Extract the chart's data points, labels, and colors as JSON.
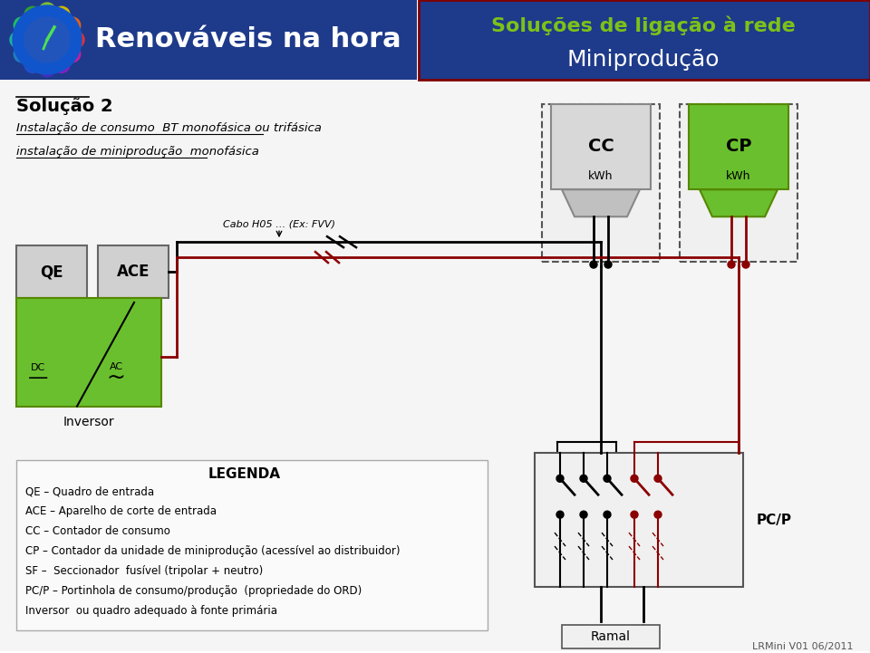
{
  "bg_color": "#ffffff",
  "header_left_color": "#1e3a8a",
  "header_right_color": "#1e3a8a",
  "green_text": "#7dc119",
  "white_text": "#ffffff",
  "title1": "Soluções de ligação à rede",
  "title2": "Miniprodução",
  "brand": "Renováveis na hora",
  "solution_title": "Solução 2",
  "line1": "Instalação de consumo  BT monofásica ou trifásica",
  "line2": "instalação de miniprodução  monofásica",
  "cc_label": "CC",
  "cp_label": "CP",
  "kwh": "kWh",
  "inversor_label": "Inversor",
  "dc_label": "DC",
  "ac_label": "AC",
  "cabo_label": "Cabo H05 … (Ex: FVV)",
  "qe_label": "QE",
  "ace_label": "ACE",
  "pcp_label": "PC/P",
  "ramal_label": "Ramal",
  "legenda_title": "LEGENDA",
  "legenda_lines": [
    "QE – Quadro de entrada",
    "ACE – Aparelho de corte de entrada",
    "CC – Contador de consumo",
    "CP – Contador da unidade de miniprodução (acessível ao distribuidor)",
    "SF –  Seccionador  fusível (tripolar + neutro)",
    "PC/P – Portinhola de consumo/produção  (propriedade do ORD)",
    "Inversor  ou quadro adequado à fonte primária"
  ],
  "footer_text": "LRMini V01 06/2011",
  "dark_red": "#8b0000",
  "black": "#000000",
  "green_box": "#6abf2e",
  "dashed_box_color": "#555555",
  "petal_colors": [
    "#e63030",
    "#e06020",
    "#d4b800",
    "#80c030",
    "#30a030",
    "#20c060",
    "#20b0a0",
    "#2080c0",
    "#2050d0",
    "#4030c0",
    "#8020c0",
    "#c020a0"
  ]
}
